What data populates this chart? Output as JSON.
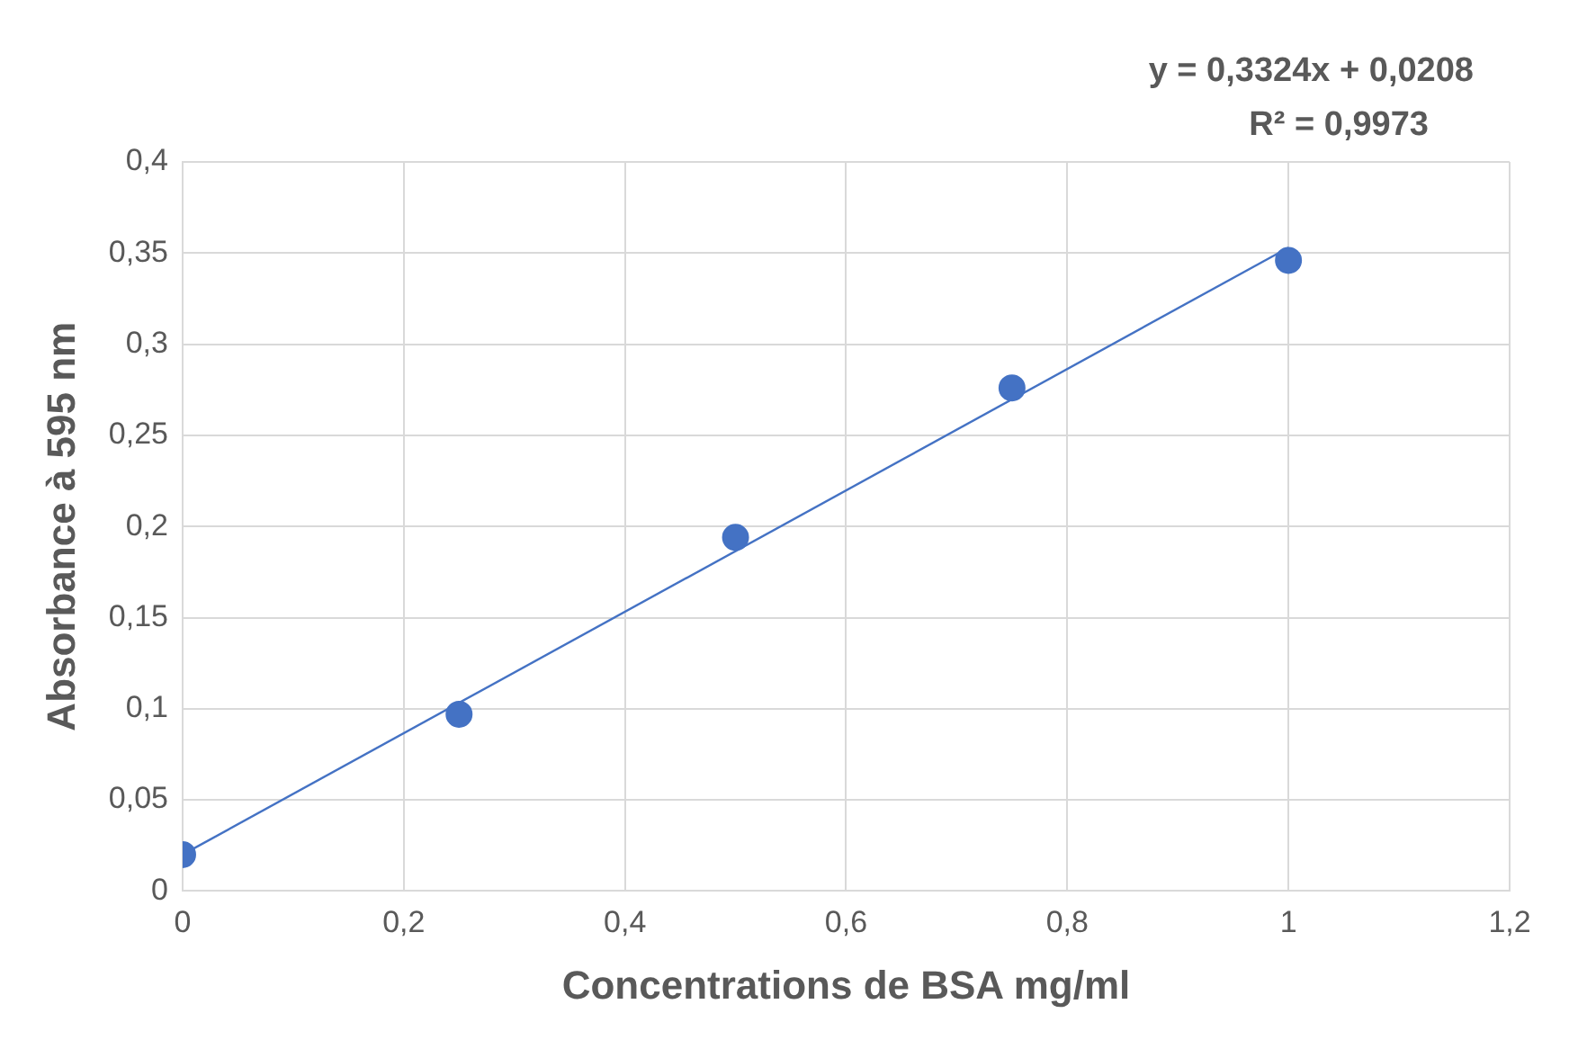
{
  "chart_data": {
    "type": "scatter",
    "xlabel": "Concentrations de BSA mg/ml",
    "ylabel": "Absorbance à 595 nm",
    "annotations": [
      "y = 0,3324x + 0,0208",
      "R² = 0,9973"
    ],
    "series": [
      {
        "type": "scatter",
        "color": "#4472c4",
        "x": [
          0,
          0.25,
          0.5,
          0.75,
          1
        ],
        "values": [
          0.02,
          0.097,
          0.194,
          0.276,
          0.346
        ]
      },
      {
        "type": "line",
        "color": "#4472c4",
        "marker": "none",
        "x": [
          0,
          1
        ],
        "values": [
          0.02,
          0.353
        ]
      }
    ],
    "xlim": [
      0,
      1.2
    ],
    "xticks": [
      0,
      {
        "value": 0.2,
        "label": "0,2"
      },
      {
        "value": 0.4,
        "label": "0,4"
      },
      {
        "value": 0.6,
        "label": "0,6"
      },
      {
        "value": 0.8,
        "label": "0,8"
      },
      1,
      {
        "value": 1.2,
        "label": "1,2"
      }
    ],
    "ylim": [
      0,
      0.4
    ],
    "yticks": [
      0,
      {
        "value": 0.05,
        "label": "0,05"
      },
      {
        "value": 0.1,
        "label": "0,1"
      },
      {
        "value": 0.15,
        "label": "0,15"
      },
      {
        "value": 0.2,
        "label": "0,2"
      },
      {
        "value": 0.25,
        "label": "0,25"
      },
      {
        "value": 0.3,
        "label": "0,3"
      },
      {
        "value": 0.35,
        "label": "0,35"
      },
      {
        "value": 0.4,
        "label": "0,4"
      }
    ],
    "grid": true,
    "legend": false,
    "marker": "circle"
  }
}
